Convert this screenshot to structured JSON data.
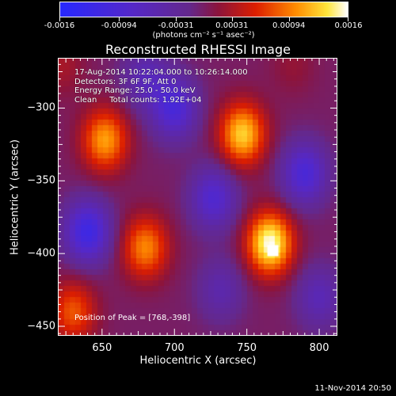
{
  "colorbar": {
    "tick_labels": [
      "-0.0016",
      "-0.00094",
      "-0.00031",
      "0.00031",
      "0.00094",
      "0.0016"
    ],
    "tick_values": [
      -0.0016,
      -0.00094,
      -0.00031,
      0.00031,
      0.00094,
      0.0016
    ],
    "range": [
      -0.0016,
      0.0016
    ],
    "units": "(photons cm⁻² s⁻¹ asec⁻²)"
  },
  "chart_data": {
    "type": "heatmap",
    "title": "Reconstructed RHESSI Image",
    "xlabel": "Heliocentric X (arcsec)",
    "ylabel": "Heliocentric Y (arcsec)",
    "xlim": [
      620,
      812
    ],
    "ylim": [
      -456,
      -266
    ],
    "x_ticks": [
      650,
      700,
      750,
      800
    ],
    "y_ticks": [
      -450,
      -400,
      -350,
      -300
    ],
    "x_tick_labels": [
      "650",
      "700",
      "750",
      "800"
    ],
    "y_tick_labels": [
      "−450",
      "−400",
      "−350",
      "−300"
    ],
    "colormap": "blue-purple-red-yellow-white",
    "value_range": [
      -0.0016,
      0.0016
    ],
    "peak_position": [
      768,
      -398
    ],
    "sources": [
      {
        "x": 766,
        "y": -393,
        "value": 0.0016
      },
      {
        "x": 747,
        "y": -318,
        "value": 0.0013
      },
      {
        "x": 652,
        "y": -322,
        "value": 0.0011
      },
      {
        "x": 680,
        "y": -396,
        "value": 0.001
      },
      {
        "x": 630,
        "y": -440,
        "value": 0.0008
      },
      {
        "x": 622,
        "y": -270,
        "value": 0.0003
      },
      {
        "x": 782,
        "y": -270,
        "value": 0.0002
      },
      {
        "x": 700,
        "y": -300,
        "value": -0.001
      },
      {
        "x": 727,
        "y": -362,
        "value": -0.0009
      },
      {
        "x": 640,
        "y": -385,
        "value": -0.0012
      },
      {
        "x": 790,
        "y": -345,
        "value": -0.001
      },
      {
        "x": 732,
        "y": -425,
        "value": -0.0005
      },
      {
        "x": 680,
        "y": -280,
        "value": -0.0006
      },
      {
        "x": 800,
        "y": -430,
        "value": -0.0006
      }
    ],
    "annotations": {
      "time_range": "17-Aug-2014 10:22:04.000 to 10:26:14.000",
      "detectors": "Detectors: 3F 6F 9F, Att 0",
      "energy_range": "Energy Range: 25.0 - 50.0 keV",
      "method_counts": "Clean     Total counts: 1.92E+04",
      "peak": "Position of Peak = [768,-398]"
    }
  },
  "footer": {
    "timestamp": "11-Nov-2014 20:50"
  },
  "colors": {
    "background": "#000000",
    "axes": "#ffffff"
  }
}
